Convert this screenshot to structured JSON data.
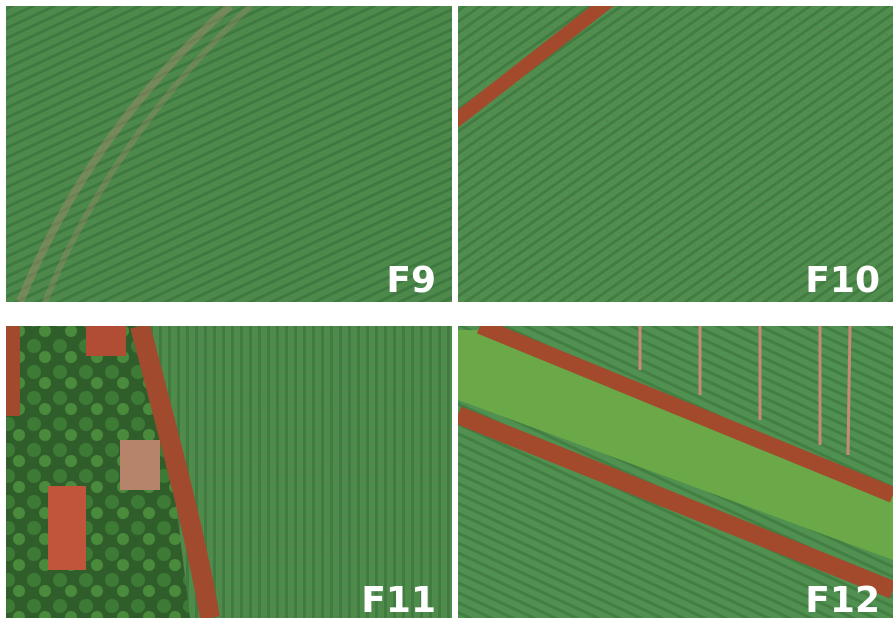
{
  "panels": [
    {
      "label": "F9"
    },
    {
      "label": "F10"
    },
    {
      "label": "F11"
    },
    {
      "label": "F12"
    }
  ]
}
